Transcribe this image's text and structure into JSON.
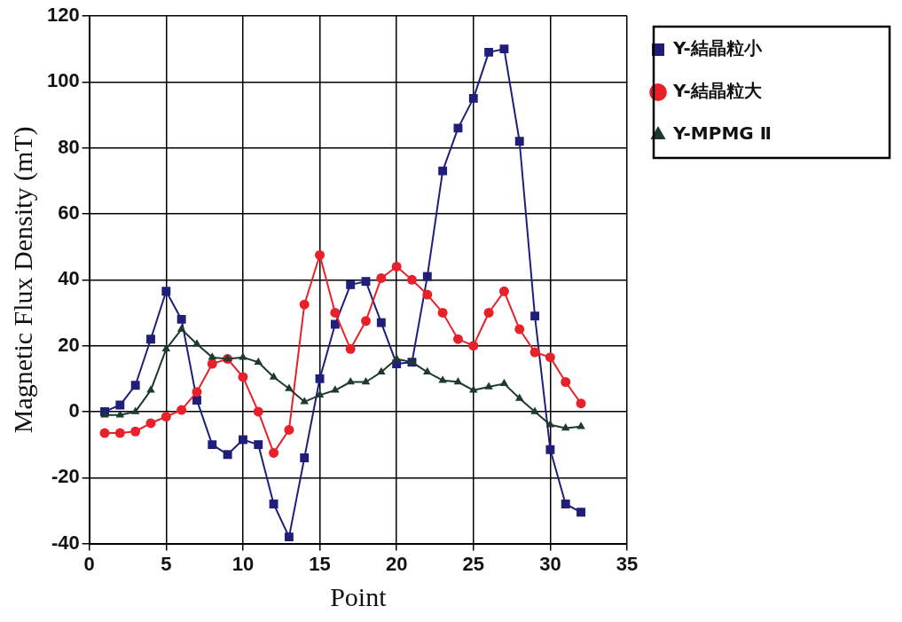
{
  "chart_data": {
    "type": "line",
    "xlabel": "Point",
    "ylabel": "Magnetic Flux Density (mT)",
    "x": [
      1,
      2,
      3,
      4,
      5,
      6,
      7,
      8,
      9,
      10,
      11,
      12,
      13,
      14,
      15,
      16,
      17,
      18,
      19,
      20,
      21,
      22,
      23,
      24,
      25,
      26,
      27,
      28,
      29,
      30,
      31,
      32
    ],
    "series": [
      {
        "name": "Y-結晶粒小",
        "color": "#1f1f7a",
        "marker": "square",
        "values": [
          0,
          2,
          8,
          22,
          36.5,
          28,
          3.5,
          -10,
          -13,
          -8.5,
          -10,
          -28,
          -38,
          -14,
          10,
          26.5,
          38.5,
          39.5,
          27,
          14.5,
          15,
          41,
          73,
          86,
          95,
          109,
          110,
          82,
          29,
          -11.5,
          -28,
          -30.5
        ]
      },
      {
        "name": "Y-結晶粒大",
        "color": "#e8202a",
        "marker": "circle",
        "values": [
          -6.5,
          -6.5,
          -6,
          -3.5,
          -1.5,
          0.5,
          6,
          14.5,
          16,
          10.5,
          0,
          -12.5,
          -5.5,
          32.5,
          47.5,
          30,
          19,
          27.5,
          40.5,
          44,
          40,
          35.5,
          30,
          22,
          20,
          30,
          36.5,
          25,
          18,
          16.5,
          9,
          2.5
        ]
      },
      {
        "name": "Y-MPMG Ⅱ",
        "color": "#1e3a2e",
        "marker": "triangle",
        "values": [
          -1,
          -1,
          0,
          6.5,
          19,
          25,
          20.5,
          16.5,
          16,
          16.5,
          15,
          10.5,
          7,
          3,
          5,
          6.5,
          9,
          9,
          12,
          16,
          15,
          12,
          9.5,
          9,
          6.5,
          7.5,
          8.5,
          4,
          0,
          -4,
          -5,
          -4.5
        ]
      }
    ],
    "xlim": [
      0,
      35
    ],
    "xticks": [
      0,
      5,
      10,
      15,
      20,
      25,
      30,
      35
    ],
    "ylim": [
      -40,
      120
    ],
    "yticks": [
      -40,
      -20,
      0,
      20,
      40,
      60,
      80,
      100,
      120
    ],
    "grid": true,
    "legend": "top right",
    "line_style": "solid"
  }
}
